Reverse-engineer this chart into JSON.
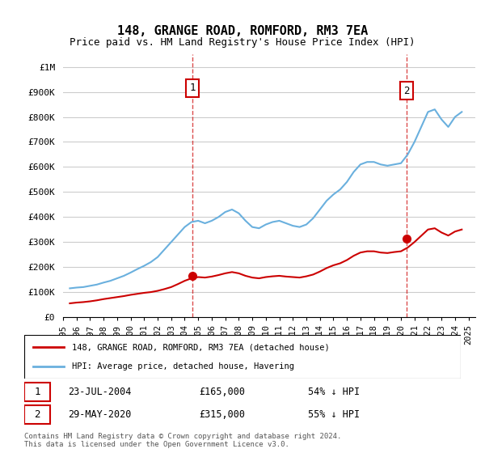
{
  "title": "148, GRANGE ROAD, ROMFORD, RM3 7EA",
  "subtitle": "Price paid vs. HM Land Registry's House Price Index (HPI)",
  "ylabel_top": "£1M",
  "yticks": [
    0,
    100000,
    200000,
    300000,
    400000,
    500000,
    600000,
    700000,
    800000,
    900000,
    1000000
  ],
  "ytick_labels": [
    "£0",
    "£100K",
    "£200K",
    "£300K",
    "£400K",
    "£500K",
    "£600K",
    "£700K",
    "£800K",
    "£900K",
    "£1M"
  ],
  "xlim_start": 1995.0,
  "xlim_end": 2025.5,
  "ylim_min": 0,
  "ylim_max": 1050000,
  "hpi_color": "#6ab0de",
  "price_color": "#cc0000",
  "marker_color_1": "#cc0000",
  "marker_color_2": "#cc0000",
  "annotation_box_color": "#cc0000",
  "grid_color": "#cccccc",
  "background_color": "#ffffff",
  "legend_label_price": "148, GRANGE ROAD, ROMFORD, RM3 7EA (detached house)",
  "legend_label_hpi": "HPI: Average price, detached house, Havering",
  "note1_num": "1",
  "note1_date": "23-JUL-2004",
  "note1_price": "£165,000",
  "note1_pct": "54% ↓ HPI",
  "note2_num": "2",
  "note2_date": "29-MAY-2020",
  "note2_price": "£315,000",
  "note2_pct": "55% ↓ HPI",
  "footer": "Contains HM Land Registry data © Crown copyright and database right 2024.\nThis data is licensed under the Open Government Licence v3.0.",
  "hpi_x": [
    1995.5,
    1996.0,
    1996.5,
    1997.0,
    1997.5,
    1998.0,
    1998.5,
    1999.0,
    1999.5,
    2000.0,
    2000.5,
    2001.0,
    2001.5,
    2002.0,
    2002.5,
    2003.0,
    2003.5,
    2004.0,
    2004.5,
    2005.0,
    2005.5,
    2006.0,
    2006.5,
    2007.0,
    2007.5,
    2008.0,
    2008.5,
    2009.0,
    2009.5,
    2010.0,
    2010.5,
    2011.0,
    2011.5,
    2012.0,
    2012.5,
    2013.0,
    2013.5,
    2014.0,
    2014.5,
    2015.0,
    2015.5,
    2016.0,
    2016.5,
    2017.0,
    2017.5,
    2018.0,
    2018.5,
    2019.0,
    2019.5,
    2020.0,
    2020.5,
    2021.0,
    2021.5,
    2022.0,
    2022.5,
    2023.0,
    2023.5,
    2024.0,
    2024.5
  ],
  "hpi_y": [
    115000,
    118000,
    120000,
    125000,
    130000,
    138000,
    145000,
    155000,
    165000,
    178000,
    192000,
    205000,
    220000,
    240000,
    270000,
    300000,
    330000,
    360000,
    380000,
    385000,
    375000,
    385000,
    400000,
    420000,
    430000,
    415000,
    385000,
    360000,
    355000,
    370000,
    380000,
    385000,
    375000,
    365000,
    360000,
    370000,
    395000,
    430000,
    465000,
    490000,
    510000,
    540000,
    580000,
    610000,
    620000,
    620000,
    610000,
    605000,
    610000,
    615000,
    650000,
    700000,
    760000,
    820000,
    830000,
    790000,
    760000,
    800000,
    820000
  ],
  "price_x": [
    1995.5,
    1996.0,
    1996.5,
    1997.0,
    1997.5,
    1998.0,
    1998.5,
    1999.0,
    1999.5,
    2000.0,
    2000.5,
    2001.0,
    2001.5,
    2002.0,
    2002.5,
    2003.0,
    2003.5,
    2004.0,
    2004.5,
    2005.0,
    2005.5,
    2006.0,
    2006.5,
    2007.0,
    2007.5,
    2008.0,
    2008.5,
    2009.0,
    2009.5,
    2010.0,
    2010.5,
    2011.0,
    2011.5,
    2012.0,
    2012.5,
    2013.0,
    2013.5,
    2014.0,
    2014.5,
    2015.0,
    2015.5,
    2016.0,
    2016.5,
    2017.0,
    2017.5,
    2018.0,
    2018.5,
    2019.0,
    2019.5,
    2020.0,
    2020.5,
    2021.0,
    2021.5,
    2022.0,
    2022.5,
    2023.0,
    2023.5,
    2024.0,
    2024.5
  ],
  "price_y": [
    55000,
    58000,
    60000,
    63000,
    67000,
    72000,
    76000,
    80000,
    84000,
    89000,
    93000,
    97000,
    100000,
    105000,
    112000,
    120000,
    132000,
    145000,
    155000,
    160000,
    158000,
    162000,
    168000,
    175000,
    180000,
    175000,
    165000,
    158000,
    155000,
    160000,
    163000,
    165000,
    162000,
    160000,
    158000,
    163000,
    170000,
    182000,
    196000,
    207000,
    215000,
    228000,
    245000,
    258000,
    263000,
    263000,
    258000,
    256000,
    260000,
    263000,
    278000,
    300000,
    325000,
    350000,
    355000,
    338000,
    326000,
    342000,
    350000
  ],
  "sale1_x": 2004.56,
  "sale1_y": 165000,
  "sale2_x": 2020.42,
  "sale2_y": 315000,
  "xtick_years": [
    1995,
    1996,
    1997,
    1998,
    1999,
    2000,
    2001,
    2002,
    2003,
    2004,
    2005,
    2006,
    2007,
    2008,
    2009,
    2010,
    2011,
    2012,
    2013,
    2014,
    2015,
    2016,
    2017,
    2018,
    2019,
    2020,
    2021,
    2022,
    2023,
    2024,
    2025
  ]
}
